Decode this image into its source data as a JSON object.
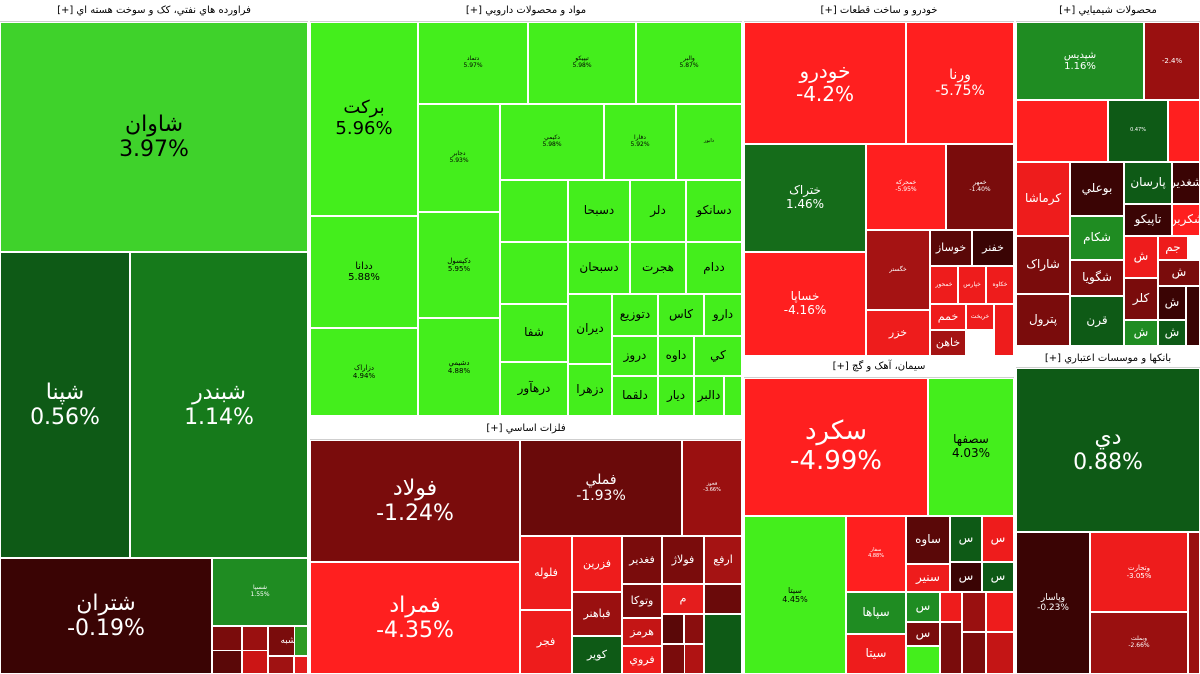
{
  "chart_data": {
    "type": "treemap",
    "title": "",
    "sectors": [
      {
        "name": "فراورده هاي نفتي، کک و سوخت هسته اي [+]",
        "stocks": [
          {
            "name": "شاوان",
            "change": "3.97%",
            "color": "#3fd22b"
          },
          {
            "name": "شپنا",
            "change": "0.56%",
            "color": "#0e5a16"
          },
          {
            "name": "شبندر",
            "change": "1.14%",
            "color": "#167a1b"
          },
          {
            "name": "شتران",
            "change": "-0.19%",
            "color": "#3a0404"
          },
          {
            "name": "شسپا",
            "change": "1.55%",
            "color": "#1f8c22"
          },
          {
            "name": "",
            "change": "",
            "color": "#7a0c0c"
          },
          {
            "name": "",
            "change": "",
            "color": "#9a1010"
          },
          {
            "name": "",
            "change": "",
            "color": "#5a0808"
          },
          {
            "name": "شبه",
            "change": "",
            "color": "#7a0c0c"
          },
          {
            "name": "",
            "change": "",
            "color": "#cc1515"
          },
          {
            "name": "",
            "change": "",
            "color": "#a01212"
          },
          {
            "name": "",
            "change": "",
            "color": "#e41d1d"
          },
          {
            "name": "",
            "change": "",
            "color": "#2e9b23"
          }
        ]
      },
      {
        "name": "مواد و محصولات دارويي [+]",
        "stocks": [
          {
            "name": "برکت",
            "change": "5.96%",
            "color": "#44ee1c"
          },
          {
            "name": "ددانا",
            "change": "5.88%",
            "color": "#44ee1c"
          },
          {
            "name": "دزاراک",
            "change": "4.94%",
            "color": "#44ee1c"
          },
          {
            "name": "دتماد",
            "change": "5.97%",
            "color": "#44ee1c"
          },
          {
            "name": "تيپيکو",
            "change": "5.98%",
            "color": "#44ee1c"
          },
          {
            "name": "والبر",
            "change": "5.87%",
            "color": "#44ee1c"
          },
          {
            "name": "دجابر",
            "change": "5.93%",
            "color": "#44ee1c"
          },
          {
            "name": "دکيمي",
            "change": "5.98%",
            "color": "#44ee1c"
          },
          {
            "name": "دفارا",
            "change": "5.92%",
            "color": "#44ee1c"
          },
          {
            "name": "دابور",
            "change": "",
            "color": "#44ee1c"
          },
          {
            "name": "دکپسول",
            "change": "5.95%",
            "color": "#44ee1c"
          },
          {
            "name": "دشيمي",
            "change": "4.88%",
            "color": "#44ee1c"
          },
          {
            "name": "دسبحا",
            "change": "",
            "color": "#44ee1c"
          },
          {
            "name": "دلر",
            "change": "",
            "color": "#44ee1c"
          },
          {
            "name": "دسانکو",
            "change": "",
            "color": "#44ee1c"
          },
          {
            "name": "دسبحان",
            "change": "",
            "color": "#44ee1c"
          },
          {
            "name": "هجرت",
            "change": "",
            "color": "#44ee1c"
          },
          {
            "name": "ددام",
            "change": "",
            "color": "#44ee1c"
          },
          {
            "name": "شفا",
            "change": "",
            "color": "#44ee1c"
          },
          {
            "name": "ديران",
            "change": "",
            "color": "#44ee1c"
          },
          {
            "name": "دتوزيع",
            "change": "",
            "color": "#44ee1c"
          },
          {
            "name": "کاس",
            "change": "",
            "color": "#44ee1c"
          },
          {
            "name": "دارو",
            "change": "",
            "color": "#44ee1c"
          },
          {
            "name": "دروز",
            "change": "",
            "color": "#44ee1c"
          },
          {
            "name": "داوه",
            "change": "",
            "color": "#44ee1c"
          },
          {
            "name": "کي",
            "change": "",
            "color": "#44ee1c"
          },
          {
            "name": "درهآور",
            "change": "",
            "color": "#44ee1c"
          },
          {
            "name": "دزهرا",
            "change": "",
            "color": "#44ee1c"
          },
          {
            "name": "دلقما",
            "change": "",
            "color": "#44ee1c"
          },
          {
            "name": "دالبر",
            "change": "",
            "color": "#44ee1c"
          },
          {
            "name": "ديار",
            "change": "",
            "color": "#44ee1c"
          },
          {
            "name": "",
            "change": "",
            "color": "#44ee1c"
          },
          {
            "name": "",
            "change": "",
            "color": "#44ee1c"
          },
          {
            "name": "",
            "change": "",
            "color": "#44ee1c"
          },
          {
            "name": "",
            "change": "",
            "color": "#44ee1c"
          }
        ]
      },
      {
        "name": "فلزات اساسي [+]",
        "stocks": [
          {
            "name": "فولاد",
            "change": "-1.24%",
            "color": "#7a0c0c"
          },
          {
            "name": "فملي",
            "change": "-1.93%",
            "color": "#6a0a0a"
          },
          {
            "name": "فخوز",
            "change": "-3.66%",
            "color": "#9a1010"
          },
          {
            "name": "فمراد",
            "change": "-4.35%",
            "color": "#ff1f1f"
          },
          {
            "name": "فلوله",
            "change": "",
            "color": "#ee1c1c"
          },
          {
            "name": "فزرين",
            "change": "",
            "color": "#ee1c1c"
          },
          {
            "name": "فغدير",
            "change": "",
            "color": "#7a0c0c"
          },
          {
            "name": "فولاژ",
            "change": "",
            "color": "#7a0c0c"
          },
          {
            "name": "ارفع",
            "change": "",
            "color": "#a51313"
          },
          {
            "name": "م",
            "change": "",
            "color": "#e41d1d"
          },
          {
            "name": "فباهنر",
            "change": "",
            "color": "#9a1010"
          },
          {
            "name": "وتوکا",
            "change": "",
            "color": "#7a0c0c"
          },
          {
            "name": "فجر",
            "change": "",
            "color": "#ee1c1c"
          },
          {
            "name": "هرمز",
            "change": "",
            "color": "#c41515"
          },
          {
            "name": "کوير",
            "change": "",
            "color": "#0e5a16"
          },
          {
            "name": "فروي",
            "change": "",
            "color": "#ee1c1c"
          },
          {
            "name": "",
            "change": "",
            "color": "#5a0808"
          },
          {
            "name": "",
            "change": "",
            "color": "#8a0e0e"
          },
          {
            "name": "",
            "change": "",
            "color": "#6a0a0a"
          },
          {
            "name": "",
            "change": "",
            "color": "#0e5a16"
          },
          {
            "name": "",
            "change": "",
            "color": "#7a0c0c"
          },
          {
            "name": "",
            "change": "",
            "color": "#b01313"
          }
        ]
      },
      {
        "name": "خودرو و ساخت قطعات [+]",
        "stocks": [
          {
            "name": "خودرو",
            "change": "-4.2%",
            "color": "#ff1f1f"
          },
          {
            "name": "ورنا",
            "change": "-5.75%",
            "color": "#ff1f1f"
          },
          {
            "name": "ختراک",
            "change": "1.46%",
            "color": "#156c1a"
          },
          {
            "name": "خمحركه",
            "change": "-5.95%",
            "color": "#ff1f1f"
          },
          {
            "name": "خمهر",
            "change": "-1.40%",
            "color": "#7a0c0c"
          },
          {
            "name": "خساپا",
            "change": "-4.16%",
            "color": "#ff1f1f"
          },
          {
            "name": "خگستر",
            "change": "",
            "color": "#a51313"
          },
          {
            "name": "خوساز",
            "change": "",
            "color": "#5a0808"
          },
          {
            "name": "خفنر",
            "change": "",
            "color": "#3a0404"
          },
          {
            "name": "خزر",
            "change": "",
            "color": "#ee1c1c"
          },
          {
            "name": "خمحور",
            "change": "",
            "color": "#ee1c1c"
          },
          {
            "name": "خپارس",
            "change": "",
            "color": "#ee1c1c"
          },
          {
            "name": "خکاوه",
            "change": "",
            "color": "#ee1c1c"
          },
          {
            "name": "خمم",
            "change": "",
            "color": "#ee1c1c"
          },
          {
            "name": "خريخت",
            "change": "",
            "color": "#ee1c1c"
          },
          {
            "name": "خاهن",
            "change": "",
            "color": "#a51313"
          },
          {
            "name": "",
            "change": "",
            "color": "#ee1c1c"
          }
        ]
      },
      {
        "name": "سيمان، آهک و گچ [+]",
        "stocks": [
          {
            "name": "سکرد",
            "change": "-4.99%",
            "color": "#ff1f1f"
          },
          {
            "name": "سصفها",
            "change": "4.03%",
            "color": "#44ee1c"
          },
          {
            "name": "سيتا",
            "change": "4.45%",
            "color": "#44ee1c"
          },
          {
            "name": "سفار",
            "change": "4.88%",
            "color": "#ff1f1f"
          },
          {
            "name": "ساوه",
            "change": "",
            "color": "#5a0808"
          },
          {
            "name": "سنير",
            "change": "",
            "color": "#ee1c1c"
          },
          {
            "name": "سپاها",
            "change": "",
            "color": "#1f8c22"
          },
          {
            "name": "سيتا",
            "change": "",
            "color": "#ee1c1c"
          },
          {
            "name": "س",
            "change": "",
            "color": "#0e5a16"
          },
          {
            "name": "س",
            "change": "",
            "color": "#ee1c1c"
          },
          {
            "name": "س",
            "change": "",
            "color": "#3a0404"
          },
          {
            "name": "س",
            "change": "",
            "color": "#0e5a16"
          },
          {
            "name": "س",
            "change": "",
            "color": "#1f8c22"
          },
          {
            "name": "س",
            "change": "",
            "color": "#7a0c0c"
          },
          {
            "name": "",
            "change": "",
            "color": "#ee1c1c"
          },
          {
            "name": "",
            "change": "",
            "color": "#44ee1c"
          },
          {
            "name": "",
            "change": "",
            "color": "#7a0c0c"
          },
          {
            "name": "",
            "change": "",
            "color": "#9a1010"
          },
          {
            "name": "",
            "change": "",
            "color": "#ee1c1c"
          },
          {
            "name": "",
            "change": "",
            "color": "#7a0c0c"
          },
          {
            "name": "",
            "change": "",
            "color": "#c41515"
          }
        ]
      },
      {
        "name": "محصولات شيميايي [+]",
        "stocks": [
          {
            "name": "شپديس",
            "change": "1.16%",
            "color": "#1f8c22"
          },
          {
            "name": "",
            "change": "-2.4%",
            "color": "#9a1010"
          },
          {
            "name": "",
            "change": "",
            "color": "#ff1f1f"
          },
          {
            "name": "",
            "change": "0.47%",
            "color": "#0e5a16"
          },
          {
            "name": "",
            "change": "",
            "color": "#ff1f1f"
          },
          {
            "name": "کرماشا",
            "change": "",
            "color": "#ee1c1c"
          },
          {
            "name": "بوعلي",
            "change": "",
            "color": "#3a0404"
          },
          {
            "name": "پارسان",
            "change": "",
            "color": "#0e5a16"
          },
          {
            "name": "شغدير",
            "change": "",
            "color": "#3a0404"
          },
          {
            "name": "شکربن",
            "change": "",
            "color": "#ff1f1f"
          },
          {
            "name": "تاپيکو",
            "change": "",
            "color": "#3a0404"
          },
          {
            "name": "شکام",
            "change": "",
            "color": "#1f8c22"
          },
          {
            "name": "شاراک",
            "change": "",
            "color": "#7a0c0c"
          },
          {
            "name": "جم",
            "change": "",
            "color": "#ee1c1c"
          },
          {
            "name": "ش",
            "change": "",
            "color": "#ee1c1c"
          },
          {
            "name": "شگويا",
            "change": "",
            "color": "#7a0c0c"
          },
          {
            "name": "ش",
            "change": "",
            "color": "#7a0c0c"
          },
          {
            "name": "پترول",
            "change": "",
            "color": "#7a0c0c"
          },
          {
            "name": "کلر",
            "change": "",
            "color": "#7a0c0c"
          },
          {
            "name": "قرن",
            "change": "",
            "color": "#0e5a16"
          },
          {
            "name": "ش",
            "change": "",
            "color": "#1f8c22"
          },
          {
            "name": "ش",
            "change": "",
            "color": "#3a0404"
          },
          {
            "name": "ش",
            "change": "",
            "color": "#0e5a16"
          },
          {
            "name": "",
            "change": "",
            "color": "#3a0404"
          }
        ]
      },
      {
        "name": "بانکها و موسسات اعتباري [+]",
        "stocks": [
          {
            "name": "دي",
            "change": "0.88%",
            "color": "#0e5a16"
          },
          {
            "name": "وپاسار",
            "change": "-0.23%",
            "color": "#3a0404"
          },
          {
            "name": "وتجارت",
            "change": "-3.05%",
            "color": "#ee1c1c"
          },
          {
            "name": "",
            "change": "",
            "color": "#9a1010"
          },
          {
            "name": "وبملت",
            "change": "-2.66%",
            "color": "#9a1010"
          },
          {
            "name": "",
            "change": "",
            "color": "#3a0404"
          }
        ]
      }
    ]
  }
}
